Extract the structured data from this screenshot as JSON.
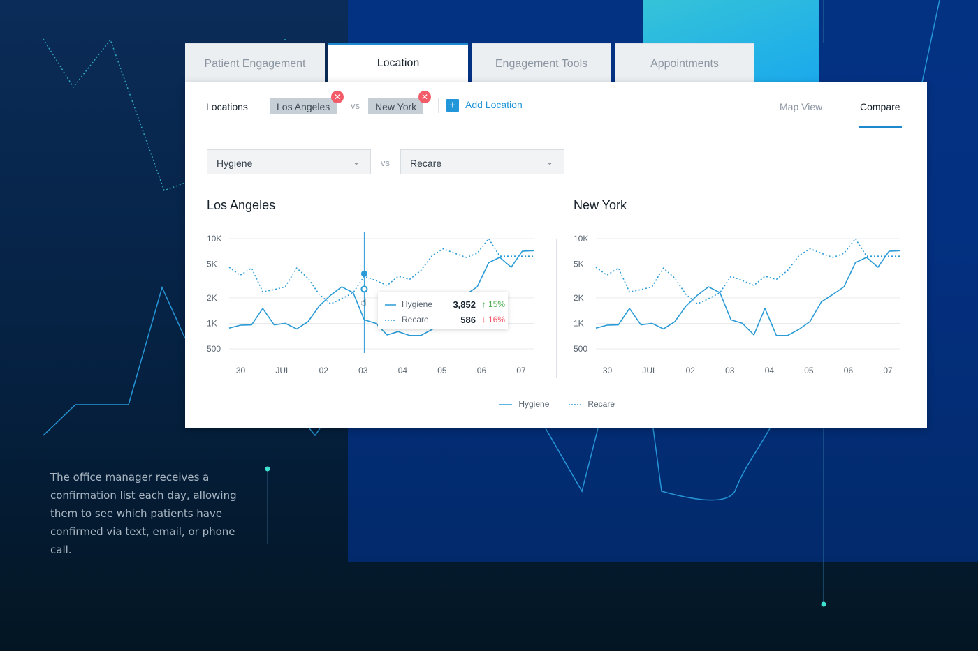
{
  "tabs": [
    {
      "label": "Patient Engagement",
      "active": false
    },
    {
      "label": "Location",
      "active": true
    },
    {
      "label": "Engagement Tools",
      "active": false
    },
    {
      "label": "Appointments",
      "active": false
    }
  ],
  "toolbar": {
    "locations_label": "Locations",
    "chips": [
      {
        "label": "Los Angeles",
        "remove_icon": "close-icon"
      },
      {
        "label": "New York",
        "remove_icon": "close-icon"
      }
    ],
    "vs": "vs",
    "add_location": "Add Location",
    "views": [
      {
        "label": "Map View",
        "active": false
      },
      {
        "label": "Compare",
        "active": true
      }
    ]
  },
  "filters": {
    "metric_a": "Hygiene",
    "vs": "vs",
    "metric_b": "Recare"
  },
  "tooltip": {
    "rows": [
      {
        "name": "Hygiene",
        "value": "3,852",
        "change": "15%",
        "direction": "up"
      },
      {
        "name": "Recare",
        "value": "586",
        "change": "16%",
        "direction": "down"
      }
    ]
  },
  "legend": {
    "series_a": "Hygiene",
    "series_b": "Recare"
  },
  "caption": "The office manager receives a confirmation list each day, allowing them to see which patients have confirmed via text, email, or phone call.",
  "colors": {
    "accent": "#1e88cf",
    "series": "#2a9bd6",
    "up": "#4caf50",
    "down": "#f05565",
    "chip_close": "#f35d6a"
  },
  "chart_data": [
    {
      "type": "line",
      "title": "Los Angeles",
      "y_scale": "log",
      "y_ticks": [
        "10K",
        "5K",
        "2K",
        "1K",
        "500"
      ],
      "y_tick_values": [
        10000,
        5000,
        2000,
        1000,
        500
      ],
      "x_ticks": [
        "30",
        "JUL",
        "02",
        "03",
        "04",
        "05",
        "06",
        "07"
      ],
      "x": [
        0,
        0.28,
        0.57,
        0.85,
        1.14,
        1.42,
        1.71,
        2.0,
        2.28,
        2.57,
        2.85,
        3.14,
        3.42,
        3.71,
        4.0,
        4.28,
        4.57,
        4.85,
        5.14,
        5.42,
        5.71,
        6.0,
        6.28,
        6.57,
        6.85,
        7.14,
        7.42,
        7.71
      ],
      "series": [
        {
          "name": "Hygiene",
          "style": "solid",
          "values": [
            880,
            950,
            960,
            1500,
            960,
            1000,
            860,
            1050,
            1600,
            2150,
            2700,
            2300,
            1100,
            1000,
            730,
            800,
            720,
            720,
            850,
            1050,
            1800,
            2200,
            2700,
            5200,
            6000,
            4600,
            7100,
            7200
          ]
        },
        {
          "name": "Recare",
          "style": "dotted",
          "values": [
            4600,
            3700,
            4500,
            2350,
            2500,
            2700,
            4500,
            3400,
            2200,
            1700,
            1950,
            2300,
            3600,
            3200,
            2800,
            3600,
            3300,
            4200,
            6300,
            7600,
            6700,
            6000,
            6700,
            10000,
            6200,
            6200,
            6200,
            6200
          ]
        }
      ],
      "highlight": {
        "x_label": "03",
        "hygiene": 3852,
        "recare": 586
      }
    },
    {
      "type": "line",
      "title": "New York",
      "y_scale": "log",
      "y_ticks": [
        "10K",
        "5K",
        "2K",
        "1K",
        "500"
      ],
      "y_tick_values": [
        10000,
        5000,
        2000,
        1000,
        500
      ],
      "x_ticks": [
        "30",
        "JUL",
        "02",
        "03",
        "04",
        "05",
        "06",
        "07"
      ],
      "x": [
        0,
        0.28,
        0.57,
        0.85,
        1.14,
        1.42,
        1.71,
        2.0,
        2.28,
        2.57,
        2.85,
        3.14,
        3.42,
        3.71,
        4.0,
        4.28,
        4.57,
        4.85,
        5.14,
        5.42,
        5.71,
        6.0,
        6.28,
        6.57,
        6.85,
        7.14,
        7.42,
        7.71
      ],
      "series": [
        {
          "name": "Hygiene",
          "style": "solid",
          "values": [
            880,
            950,
            960,
            1500,
            960,
            1000,
            860,
            1050,
            1600,
            2150,
            2700,
            2300,
            1100,
            1000,
            730,
            1500,
            720,
            720,
            850,
            1050,
            1800,
            2200,
            2700,
            5200,
            6000,
            4600,
            7100,
            7200
          ]
        },
        {
          "name": "Recare",
          "style": "dotted",
          "values": [
            4600,
            3700,
            4500,
            2350,
            2500,
            2700,
            4500,
            3400,
            2200,
            1700,
            1950,
            2300,
            3600,
            3200,
            2800,
            3600,
            3300,
            4200,
            6300,
            7600,
            6700,
            6000,
            6700,
            10000,
            6200,
            6200,
            6200,
            6200
          ]
        }
      ]
    }
  ]
}
